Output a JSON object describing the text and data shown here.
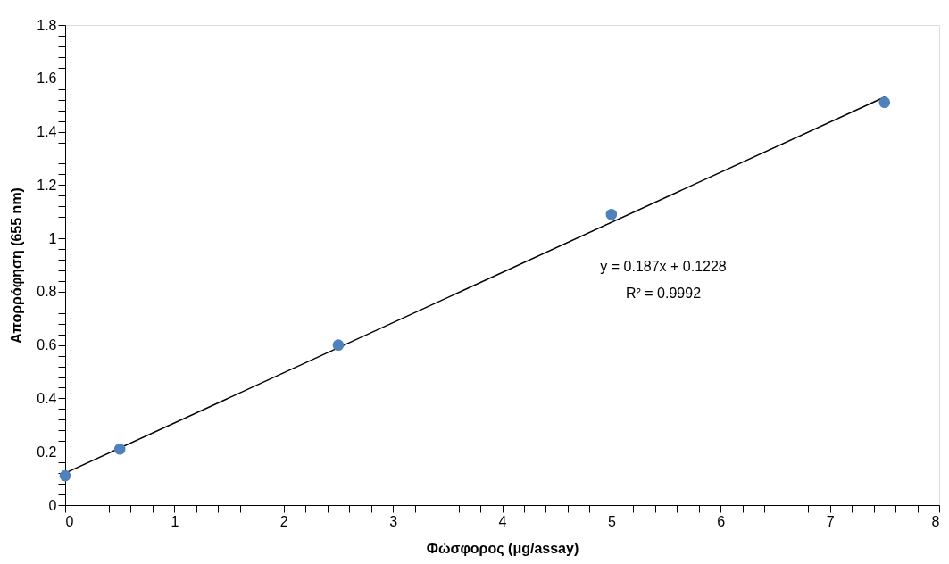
{
  "chart_data": {
    "type": "scatter",
    "xlabel": "Φώσφορος (μg/assay)",
    "ylabel": "Απορρόφηση (655 nm)",
    "series": [
      {
        "color": "#4f81bd",
        "marker": "circle",
        "x": [
          0,
          0.5,
          2.5,
          5,
          7.5
        ],
        "values": [
          0.11,
          0.21,
          0.6,
          1.09,
          1.51
        ]
      },
      {
        "type": "line",
        "color": "#000000",
        "marker": "none",
        "line_style": "solid",
        "x": [
          0,
          7.5
        ],
        "values": [
          0.12,
          1.53
        ]
      }
    ],
    "annotations": [
      "y = 0.187x + 0.1228",
      "R² = 0.9992"
    ],
    "xlim": [
      0,
      8
    ],
    "ylim": [
      0,
      1.8
    ],
    "xticks": [
      0,
      {
        "value": 0.2,
        "label": null
      },
      {
        "value": 0.4,
        "label": null
      },
      {
        "value": 0.6,
        "label": null
      },
      {
        "value": 0.8,
        "label": null
      },
      1,
      {
        "value": 1.2,
        "label": null
      },
      {
        "value": 1.4,
        "label": null
      },
      {
        "value": 1.6,
        "label": null
      },
      {
        "value": 1.8,
        "label": null
      },
      2,
      {
        "value": 2.2,
        "label": null
      },
      {
        "value": 2.4,
        "label": null
      },
      {
        "value": 2.6,
        "label": null
      },
      {
        "value": 2.8,
        "label": null
      },
      3,
      {
        "value": 3.2,
        "label": null
      },
      {
        "value": 3.4,
        "label": null
      },
      {
        "value": 3.6,
        "label": null
      },
      {
        "value": 3.8,
        "label": null
      },
      4,
      {
        "value": 4.2,
        "label": null
      },
      {
        "value": 4.4,
        "label": null
      },
      {
        "value": 4.6,
        "label": null
      },
      {
        "value": 4.8,
        "label": null
      },
      5,
      {
        "value": 5.2,
        "label": null
      },
      {
        "value": 5.4,
        "label": null
      },
      {
        "value": 5.6,
        "label": null
      },
      {
        "value": 5.8,
        "label": null
      },
      6,
      {
        "value": 6.2,
        "label": null
      },
      {
        "value": 6.4,
        "label": null
      },
      {
        "value": 6.6,
        "label": null
      },
      {
        "value": 6.8,
        "label": null
      },
      7,
      {
        "value": 7.2,
        "label": null
      },
      {
        "value": 7.4,
        "label": null
      },
      {
        "value": 7.6,
        "label": null
      },
      {
        "value": 7.8,
        "label": null
      },
      8
    ],
    "yticks": [
      0,
      {
        "value": 0.04,
        "label": null
      },
      {
        "value": 0.08,
        "label": null
      },
      {
        "value": 0.12,
        "label": null
      },
      {
        "value": 0.16,
        "label": null
      },
      0.2,
      {
        "value": 0.24,
        "label": null
      },
      {
        "value": 0.28,
        "label": null
      },
      {
        "value": 0.32,
        "label": null
      },
      {
        "value": 0.36,
        "label": null
      },
      0.4,
      {
        "value": 0.44,
        "label": null
      },
      {
        "value": 0.48,
        "label": null
      },
      {
        "value": 0.52,
        "label": null
      },
      {
        "value": 0.56,
        "label": null
      },
      0.6,
      {
        "value": 0.64,
        "label": null
      },
      {
        "value": 0.68,
        "label": null
      },
      {
        "value": 0.72,
        "label": null
      },
      {
        "value": 0.76,
        "label": null
      },
      0.8,
      {
        "value": 0.84,
        "label": null
      },
      {
        "value": 0.88,
        "label": null
      },
      {
        "value": 0.92,
        "label": null
      },
      {
        "value": 0.96,
        "label": null
      },
      1,
      {
        "value": 1.04,
        "label": null
      },
      {
        "value": 1.08,
        "label": null
      },
      {
        "value": 1.12,
        "label": null
      },
      {
        "value": 1.16,
        "label": null
      },
      1.2,
      {
        "value": 1.24,
        "label": null
      },
      {
        "value": 1.28,
        "label": null
      },
      {
        "value": 1.32,
        "label": null
      },
      {
        "value": 1.36,
        "label": null
      },
      1.4,
      {
        "value": 1.44,
        "label": null
      },
      {
        "value": 1.48,
        "label": null
      },
      {
        "value": 1.52,
        "label": null
      },
      {
        "value": 1.56,
        "label": null
      },
      1.6,
      {
        "value": 1.64,
        "label": null
      },
      {
        "value": 1.68,
        "label": null
      },
      {
        "value": 1.72,
        "label": null
      },
      {
        "value": 1.76,
        "label": null
      },
      1.8
    ],
    "grid": false,
    "legend": false
  }
}
